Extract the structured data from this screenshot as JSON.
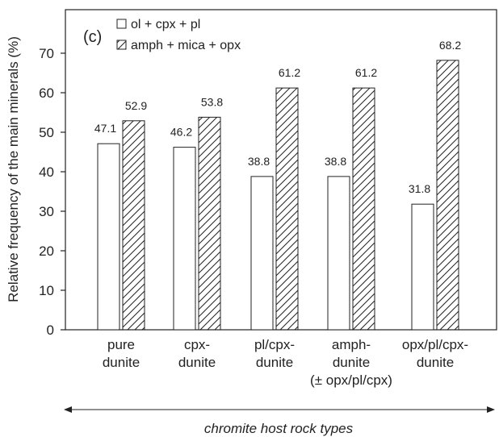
{
  "chart_data": {
    "type": "bar",
    "panel_label": "(c)",
    "ylabel": "Relative frequency of the main minerals (%)",
    "xlabel": "chromite host rock types",
    "ylim": [
      0,
      80
    ],
    "yticks": [
      0,
      10,
      20,
      30,
      40,
      50,
      60,
      70
    ],
    "grid": false,
    "legend_position": "top-left",
    "categories": [
      [
        "pure",
        "dunite"
      ],
      [
        "cpx-",
        "dunite"
      ],
      [
        "pl/cpx-",
        "dunite"
      ],
      [
        "amph-",
        "dunite",
        "(± opx/pl/cpx)"
      ],
      [
        "opx/pl/cpx-",
        "dunite"
      ]
    ],
    "series": [
      {
        "name": "ol + cpx + pl",
        "pattern": "open",
        "values": [
          47.1,
          46.2,
          38.8,
          38.8,
          31.8
        ]
      },
      {
        "name": "amph + mica + opx",
        "pattern": "diagonal-hatch",
        "values": [
          52.9,
          53.8,
          61.2,
          61.2,
          68.2
        ]
      }
    ],
    "colors": {
      "stroke": "#222222",
      "fill": "#ffffff"
    }
  }
}
